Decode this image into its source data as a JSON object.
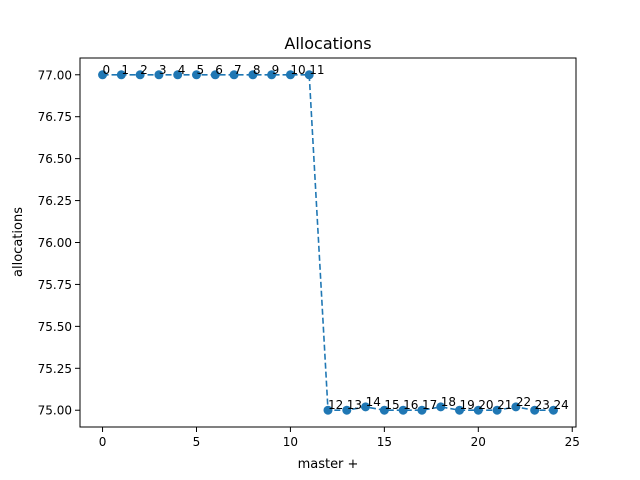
{
  "chart_data": {
    "type": "line",
    "title": "Allocations",
    "xlabel": "master +",
    "ylabel": "allocations",
    "xlim": [
      -1.2,
      25.2
    ],
    "ylim": [
      74.9,
      77.1
    ],
    "x_ticks": [
      0,
      5,
      10,
      15,
      20,
      25
    ],
    "y_ticks": [
      75.0,
      75.25,
      75.5,
      75.75,
      76.0,
      76.25,
      76.5,
      76.75,
      77.0
    ],
    "y_tick_labels": [
      "75.00",
      "75.25",
      "75.50",
      "75.75",
      "76.00",
      "76.25",
      "76.50",
      "76.75",
      "77.00"
    ],
    "grid": false,
    "line_style": "dashed",
    "marker": "circle",
    "color": "#1f77b4",
    "series": [
      {
        "x": [
          0,
          1,
          2,
          3,
          4,
          5,
          6,
          7,
          8,
          9,
          10,
          11,
          12,
          13,
          14,
          15,
          16,
          17,
          18,
          19,
          20,
          21,
          22,
          23,
          24
        ],
        "values": [
          77.0,
          77.0,
          77.0,
          77.0,
          77.0,
          77.0,
          77.0,
          77.0,
          77.0,
          77.0,
          77.0,
          77.0,
          75.0,
          75.0,
          75.02,
          75.0,
          75.0,
          75.0,
          75.02,
          75.0,
          75.0,
          75.0,
          75.02,
          75.0,
          75.0
        ],
        "point_labels": [
          "0",
          "1",
          "2",
          "3",
          "4",
          "5",
          "6",
          "7",
          "8",
          "9",
          "10",
          "11",
          "12",
          "13",
          "14",
          "15",
          "16",
          "17",
          "18",
          "19",
          "20",
          "21",
          "22",
          "23",
          "24"
        ]
      }
    ]
  }
}
